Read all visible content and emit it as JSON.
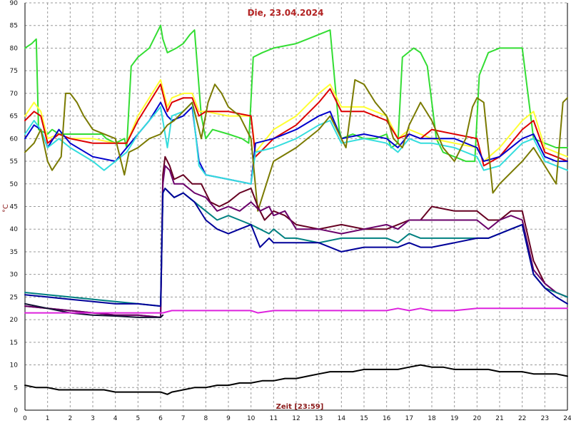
{
  "chart_data": {
    "type": "line",
    "title": "Die, 23.04.2024",
    "xlabel": "Zeit [23:59]",
    "ylabel": "°C",
    "xlim": [
      0,
      24
    ],
    "ylim": [
      0,
      90
    ],
    "xticks": [
      "0",
      "1",
      "2",
      "3",
      "4",
      "5",
      "6",
      "7",
      "8",
      "9",
      "10",
      "11",
      "12",
      "13",
      "14",
      "15",
      "16",
      "17",
      "18",
      "19",
      "20",
      "21",
      "22",
      "23",
      "24"
    ],
    "yticks": [
      "0",
      "5",
      "10",
      "15",
      "20",
      "25",
      "30",
      "35",
      "40",
      "45",
      "50",
      "55",
      "60",
      "65",
      "70",
      "75",
      "80",
      "85",
      "90"
    ],
    "grid": true,
    "series": [
      {
        "color": "#33dd33",
        "x": [
          0,
          0.3,
          0.5,
          0.6,
          1,
          1.2,
          1.5,
          2,
          2.5,
          3.4,
          3.6,
          4,
          4.4,
          4.5,
          4.7,
          5,
          5.5,
          6,
          6.1,
          6.3,
          6.7,
          7,
          7.3,
          7.5,
          7.8,
          8,
          8.3,
          9,
          9.6,
          9.9,
          10.1,
          10.5,
          11,
          12,
          12.5,
          13,
          13.5,
          13.9,
          14,
          14.5,
          15,
          15.5,
          16,
          16.2,
          16.5,
          16.7,
          17.2,
          17.5,
          17.8,
          18.2,
          18.5,
          19,
          19.5,
          19.9,
          20.1,
          20.5,
          21,
          21.5,
          22,
          22.5,
          23,
          23.5,
          24
        ],
        "values": [
          80,
          81,
          82,
          62,
          61,
          62,
          61,
          61,
          61,
          61,
          60,
          59,
          60,
          58,
          76,
          78,
          80,
          85,
          82,
          79,
          80,
          81,
          83,
          84,
          65,
          60,
          62,
          61,
          60,
          59,
          78,
          79,
          80,
          81,
          82,
          83,
          84,
          62,
          60,
          61,
          60,
          60,
          61,
          58,
          59,
          78,
          80,
          79,
          76,
          60,
          57,
          56,
          55,
          55,
          74,
          79,
          80,
          80,
          80,
          60,
          59,
          58,
          58
        ]
      },
      {
        "color": "#ffff33",
        "x": [
          0,
          0.4,
          0.7,
          1,
          1.5,
          2,
          3,
          4,
          4.5,
          5,
          5.5,
          6,
          6.3,
          6.5,
          7,
          7.4,
          7.7,
          8,
          9,
          10,
          10.2,
          11,
          12,
          13,
          13.5,
          14,
          15,
          16,
          16.5,
          17,
          17.5,
          18,
          19,
          20,
          20.3,
          21,
          22,
          22.5,
          23,
          23.5,
          24
        ],
        "values": [
          65,
          68,
          66,
          60,
          61,
          60,
          60,
          59,
          59,
          65,
          69,
          73,
          67,
          69,
          70,
          70,
          66,
          66,
          65,
          65,
          57,
          62,
          65,
          70,
          72,
          67,
          67,
          65,
          60,
          62,
          61,
          60,
          59,
          58,
          55,
          58,
          64,
          66,
          58,
          57,
          56
        ]
      },
      {
        "color": "#dd0000",
        "x": [
          0,
          0.4,
          0.7,
          1,
          1.5,
          2,
          3,
          4,
          4.5,
          5,
          5.5,
          6,
          6.3,
          6.5,
          7,
          7.4,
          7.7,
          8,
          9,
          10,
          10.2,
          11,
          12,
          13,
          13.5,
          14,
          15,
          16,
          16.5,
          17,
          17.5,
          18,
          19,
          20,
          20.3,
          21,
          22,
          22.5,
          23,
          23.5,
          24
        ],
        "values": [
          64,
          66,
          65,
          59,
          61,
          60,
          59,
          59,
          59,
          64,
          68,
          72,
          66,
          68,
          69,
          69,
          65,
          66,
          66,
          65,
          56,
          60,
          63,
          68,
          71,
          66,
          66,
          64,
          60,
          61,
          60,
          62,
          61,
          60,
          54,
          56,
          62,
          64,
          57,
          56,
          55
        ]
      },
      {
        "color": "#0000cc",
        "x": [
          0,
          0.4,
          0.7,
          1,
          1.5,
          2,
          3,
          4,
          4.5,
          5,
          5.5,
          6,
          6.3,
          6.5,
          7,
          7.4,
          7.7,
          8,
          9,
          10,
          10.2,
          11,
          12,
          13,
          13.5,
          14,
          15,
          16,
          16.5,
          17,
          17.5,
          18,
          19,
          20,
          20.3,
          21,
          22,
          22.5,
          23,
          23.5,
          24
        ],
        "values": [
          60,
          63,
          62,
          58,
          62,
          59,
          56,
          55,
          58,
          61,
          64,
          68,
          65,
          64,
          65,
          67,
          55,
          52,
          51,
          50,
          59,
          60,
          62,
          65,
          66,
          60,
          61,
          60,
          58,
          61,
          60,
          60,
          60,
          58,
          55,
          56,
          60,
          61,
          56,
          55,
          55
        ]
      },
      {
        "color": "#33dddd",
        "x": [
          0,
          0.4,
          0.7,
          1,
          1.5,
          2,
          3,
          3.5,
          4,
          4.5,
          5,
          5.5,
          6,
          6.3,
          6.5,
          7,
          7.4,
          7.7,
          8,
          9,
          10,
          10.2,
          11,
          12,
          13,
          13.5,
          14,
          15,
          16,
          16.5,
          17,
          17.5,
          18,
          19,
          20,
          20.3,
          21,
          22,
          22.5,
          23,
          23.5,
          24
        ],
        "values": [
          61,
          64,
          62,
          58,
          60,
          58,
          55,
          53,
          55,
          57,
          61,
          64,
          67,
          58,
          65,
          66,
          68,
          54,
          52,
          51,
          50,
          57,
          58,
          60,
          63,
          64,
          59,
          60,
          59,
          57,
          60,
          59,
          59,
          58,
          56,
          53,
          54,
          59,
          60,
          55,
          54,
          53
        ]
      },
      {
        "color": "#7a7a00",
        "x": [
          0,
          0.4,
          0.7,
          1,
          1.2,
          1.6,
          1.8,
          2,
          2.3,
          2.6,
          3,
          4,
          4.4,
          4.6,
          5,
          5.5,
          6,
          6.3,
          6.6,
          7,
          7.4,
          7.8,
          8.1,
          8.4,
          8.7,
          9,
          9.5,
          10,
          10.3,
          11,
          12,
          13,
          13.5,
          14,
          14.2,
          14.6,
          15,
          15.5,
          16,
          16.3,
          16.7,
          17,
          17.5,
          18,
          18.5,
          19,
          19.5,
          19.8,
          20,
          20.3,
          20.7,
          21,
          22,
          22.5,
          23,
          23.5,
          23.8,
          24
        ],
        "values": [
          57,
          59,
          62,
          55,
          53,
          56,
          70,
          70,
          68,
          65,
          62,
          60,
          52,
          57,
          58,
          60,
          61,
          63,
          64,
          66,
          68,
          60,
          68,
          72,
          70,
          67,
          65,
          60,
          44,
          55,
          58,
          62,
          65,
          60,
          58,
          73,
          72,
          68,
          65,
          60,
          58,
          63,
          68,
          64,
          58,
          55,
          60,
          67,
          69,
          68,
          48,
          50,
          55,
          58,
          54,
          50,
          68,
          69
        ]
      },
      {
        "color": "#660022",
        "x": [
          0,
          1,
          2,
          3,
          4,
          5,
          6,
          6.1,
          6.2,
          6.4,
          6.6,
          7,
          7.4,
          7.8,
          8.2,
          8.6,
          9,
          9.5,
          10,
          10.3,
          10.6,
          11,
          11.5,
          12,
          13,
          14,
          15,
          16,
          16.5,
          17,
          17.5,
          18,
          19,
          20,
          20.5,
          21,
          21.5,
          22,
          22.5,
          23,
          23.5,
          24
        ],
        "values": [
          23,
          22.5,
          22,
          21.5,
          21,
          21,
          20.5,
          52,
          56,
          54,
          51,
          52,
          50,
          50,
          46,
          45,
          46,
          48,
          49,
          45,
          42,
          44,
          43,
          41,
          40,
          41,
          40,
          40,
          41,
          42,
          42,
          45,
          44,
          44,
          42,
          42,
          44,
          44,
          33,
          28,
          26,
          25
        ]
      },
      {
        "color": "#6a006a",
        "x": [
          0,
          1,
          2,
          3,
          4,
          5,
          6,
          6.1,
          6.2,
          6.4,
          6.6,
          7,
          7.5,
          8,
          8.5,
          9,
          9.5,
          10,
          10.4,
          10.8,
          11,
          11.5,
          12,
          13,
          14,
          15,
          16,
          16.5,
          17,
          17.5,
          18,
          19,
          20,
          20.5,
          21,
          21.5,
          22,
          22.5,
          23,
          23.5,
          24
        ],
        "values": [
          23,
          22.5,
          22,
          21.5,
          21,
          21,
          20.5,
          50,
          54,
          53,
          50,
          50,
          48,
          47,
          44,
          45,
          44,
          46,
          44,
          45,
          43,
          44,
          40,
          40,
          39,
          40,
          41,
          40,
          42,
          42,
          42,
          42,
          42,
          40,
          42,
          43,
          42,
          31,
          28,
          26,
          25
        ]
      },
      {
        "color": "#008080",
        "x": [
          0,
          1,
          2,
          3,
          4,
          5,
          6,
          6.1,
          6.2,
          6.4,
          6.6,
          7,
          7.5,
          8,
          8.5,
          9,
          9.5,
          10,
          10.4,
          10.8,
          11,
          11.5,
          12,
          13,
          14,
          15,
          16,
          16.5,
          17,
          17.5,
          18,
          19,
          20,
          20.5,
          21,
          21.5,
          22,
          22.5,
          23,
          23.5,
          24
        ],
        "values": [
          26,
          25.5,
          25,
          24.5,
          24,
          23.5,
          23,
          48,
          49,
          48,
          47,
          48,
          46,
          44,
          42,
          43,
          42,
          41,
          40,
          39,
          40,
          38,
          38,
          37,
          38,
          38,
          38,
          37,
          39,
          38,
          38,
          38,
          38,
          38,
          39,
          40,
          41,
          30,
          27,
          26,
          25
        ]
      },
      {
        "color": "#000099",
        "x": [
          0,
          1,
          2,
          3,
          4,
          5,
          6,
          6.1,
          6.2,
          6.4,
          6.6,
          7,
          7.5,
          8,
          8.5,
          9,
          9.5,
          10,
          10.4,
          10.8,
          11,
          11.5,
          12,
          13,
          14,
          15,
          16,
          16.5,
          17,
          17.5,
          18,
          19,
          20,
          20.5,
          21,
          21.5,
          22,
          22.5,
          23,
          23.5,
          24
        ],
        "values": [
          25.5,
          25,
          24.5,
          24,
          23.5,
          23.5,
          23,
          48,
          49,
          48,
          47,
          48,
          46,
          42,
          40,
          39,
          40,
          41,
          36,
          38,
          37,
          37,
          37,
          37,
          35,
          36,
          36,
          36,
          37,
          36,
          36,
          37,
          38,
          38,
          39,
          40,
          41,
          30,
          27,
          25,
          23.5
        ]
      },
      {
        "color": "#111133",
        "x": [
          0,
          1,
          2,
          3,
          4,
          5,
          6,
          6.1
        ],
        "values": [
          23.5,
          22.5,
          21.5,
          21,
          20.8,
          20.5,
          20.5,
          21
        ]
      },
      {
        "color": "#dd22dd",
        "x": [
          0,
          1,
          2,
          3,
          4,
          5,
          6,
          6.1,
          6.5,
          7,
          8,
          9,
          10,
          10.3,
          11,
          12,
          13,
          14,
          15,
          16,
          16.5,
          17,
          17.5,
          18,
          19,
          20,
          21,
          22,
          23,
          24
        ],
        "values": [
          21.5,
          21.5,
          21.5,
          21.5,
          21.5,
          21.5,
          21.5,
          21.5,
          22,
          22,
          22,
          22,
          22,
          21.5,
          22,
          22,
          22,
          22,
          22,
          22,
          22.5,
          22,
          22.5,
          22,
          22,
          22.5,
          22.5,
          22.5,
          22.5,
          22.5
        ]
      },
      {
        "color": "#000000",
        "x": [
          0,
          0.5,
          1,
          1.5,
          2,
          2.5,
          3,
          3.5,
          4,
          4.5,
          5,
          5.5,
          6,
          6.3,
          6.5,
          7,
          7.5,
          8,
          8.5,
          9,
          9.5,
          10,
          10.5,
          11,
          11.5,
          12,
          12.5,
          13,
          13.5,
          14,
          14.5,
          15,
          15.5,
          16,
          16.5,
          17,
          17.5,
          18,
          18.5,
          19,
          19.5,
          20,
          20.5,
          21,
          21.5,
          22,
          22.5,
          23,
          23.5,
          24
        ],
        "values": [
          5.5,
          5,
          5,
          4.5,
          4.5,
          4.5,
          4.5,
          4.5,
          4,
          4,
          4,
          4,
          4,
          3.5,
          4,
          4.5,
          5,
          5,
          5.5,
          5.5,
          6,
          6,
          6.5,
          6.5,
          7,
          7,
          7.5,
          8,
          8.5,
          8.5,
          8.5,
          9,
          9,
          9,
          9,
          9.5,
          10,
          9.5,
          9.5,
          9,
          9,
          9,
          9,
          8.5,
          8.5,
          8.5,
          8,
          8,
          8,
          7.5
        ]
      }
    ]
  }
}
